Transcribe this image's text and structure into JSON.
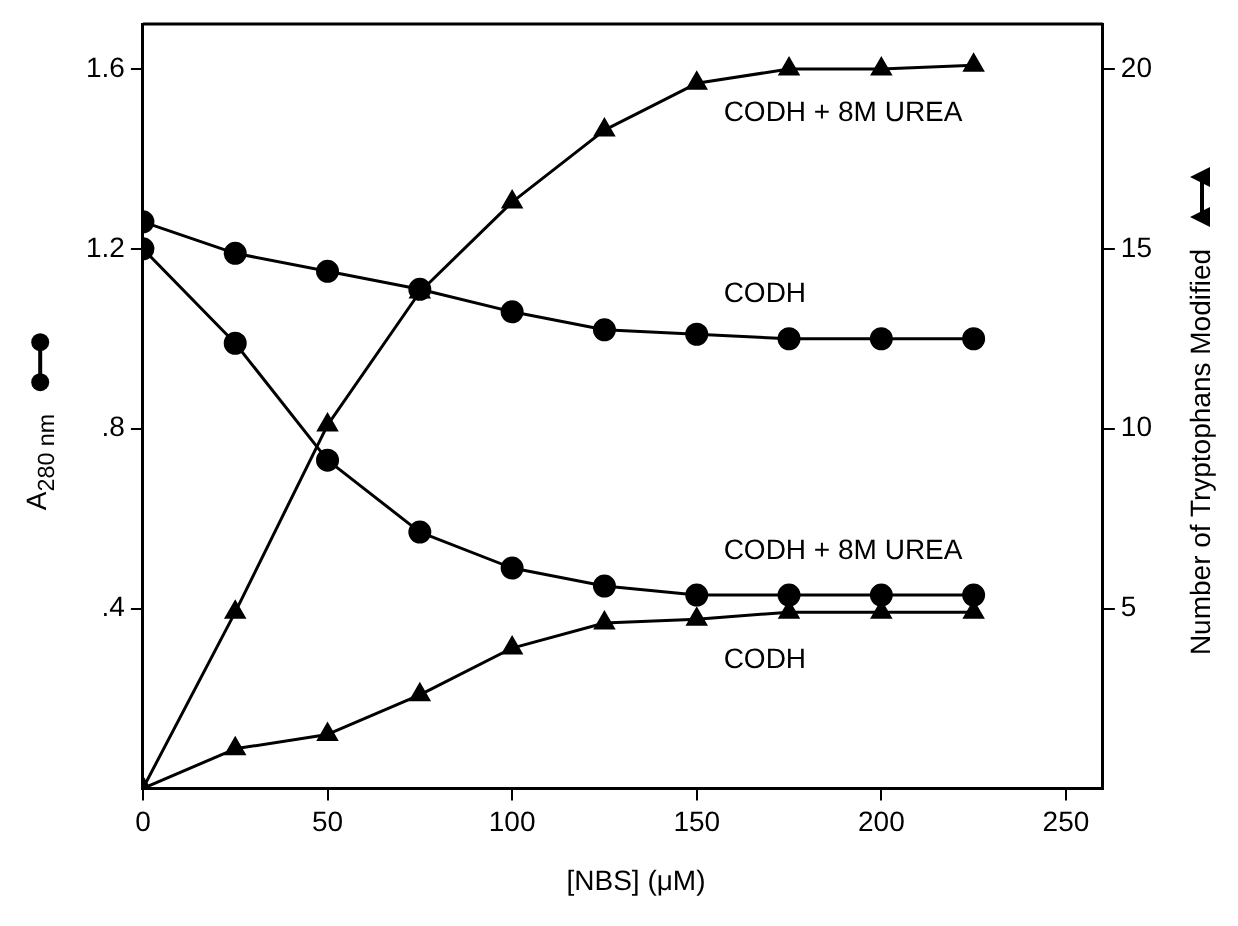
{
  "chart_data": {
    "type": "line",
    "xlabel": "[NBS] (μM)",
    "ylabel": "A$_{280 nm}$",
    "y2label": "Number of Tryptophans Modified",
    "x": [
      0,
      25,
      50,
      75,
      100,
      125,
      150,
      175,
      200,
      225
    ],
    "xlim": [
      0,
      260
    ],
    "xticks": [
      0,
      50,
      100,
      150,
      200,
      250
    ],
    "ylim": [
      0,
      1.7
    ],
    "yticks": [
      {
        "value": 0.4,
        "label": ".4"
      },
      {
        "value": 0.8,
        "label": ".8"
      },
      1.2,
      1.6
    ],
    "y2lim": [
      0,
      21.25
    ],
    "y2ticks": [
      5,
      10,
      15,
      20
    ],
    "series": [
      {
        "name": "CODH",
        "color": "#000000",
        "marker": "circle",
        "values": [
          1.26,
          1.19,
          1.15,
          1.11,
          1.06,
          1.02,
          1.01,
          1.0,
          1.0,
          1.0
        ]
      },
      {
        "name": "CODH + 8M UREA",
        "color": "#000000",
        "marker": "circle",
        "values": [
          1.2,
          0.99,
          0.73,
          0.57,
          0.49,
          0.45,
          0.43,
          0.43,
          0.43,
          0.43
        ]
      },
      {
        "name": "CODH + 8M UREA",
        "color": "#000000",
        "marker": "triangle",
        "axis": "y2",
        "values": [
          0,
          4.9,
          10.1,
          13.8,
          16.3,
          18.3,
          19.6,
          20,
          20,
          20.1
        ]
      },
      {
        "name": "CODH",
        "color": "#000000",
        "marker": "triangle",
        "axis": "y2",
        "values": [
          0,
          1.1,
          1.5,
          2.6,
          3.9,
          4.6,
          4.7,
          4.9,
          4.9,
          4.9
        ]
      }
    ],
    "grid": false,
    "legend": false
  }
}
